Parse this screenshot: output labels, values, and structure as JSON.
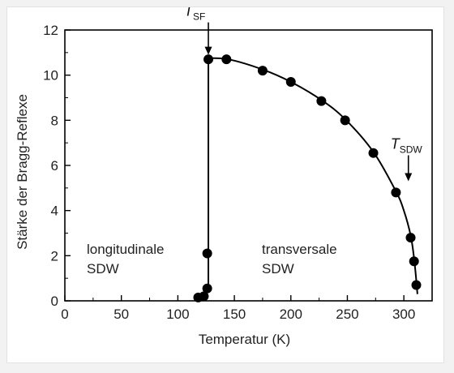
{
  "chart_data": {
    "type": "scatter",
    "xlabel": "Temperatur (K)",
    "ylabel": "Stärke der Bragg-Reflexe",
    "xlim": [
      0,
      325
    ],
    "ylim": [
      0,
      12
    ],
    "x_ticks": [
      0,
      50,
      100,
      150,
      200,
      250,
      300
    ],
    "y_ticks": [
      0,
      2,
      4,
      6,
      8,
      10,
      12
    ],
    "grid": false,
    "colors": {
      "marker": "#000000",
      "line": "#000000",
      "axis": "#000000"
    },
    "series": [
      {
        "points": [
          {
            "x": 118,
            "y": 0.15
          },
          {
            "x": 123,
            "y": 0.2
          },
          {
            "x": 126,
            "y": 0.55
          },
          {
            "x": 126,
            "y": 2.1
          },
          {
            "x": 127,
            "y": 10.7
          },
          {
            "x": 143,
            "y": 10.7
          },
          {
            "x": 175,
            "y": 10.2
          },
          {
            "x": 200,
            "y": 9.7
          },
          {
            "x": 227,
            "y": 8.85
          },
          {
            "x": 248,
            "y": 8.0
          },
          {
            "x": 273,
            "y": 6.55
          },
          {
            "x": 293,
            "y": 4.8
          },
          {
            "x": 306,
            "y": 2.8
          },
          {
            "x": 309,
            "y": 1.75
          },
          {
            "x": 311,
            "y": 0.7
          }
        ]
      }
    ],
    "curve": [
      [
        127,
        10.75
      ],
      [
        145,
        10.7
      ],
      [
        175,
        10.25
      ],
      [
        200,
        9.7
      ],
      [
        227,
        8.9
      ],
      [
        248,
        8.05
      ],
      [
        273,
        6.6
      ],
      [
        293,
        4.85
      ],
      [
        300,
        4.0
      ],
      [
        306,
        2.9
      ],
      [
        309,
        1.9
      ],
      [
        311,
        0.9
      ],
      [
        312,
        0.3
      ]
    ],
    "transition_line": {
      "x": 127,
      "y_from": 0.5,
      "y_to": 10.75
    },
    "annotations": [
      {
        "main": "T",
        "sub": "SF",
        "x": 127,
        "arrow_to_y": 10.9
      },
      {
        "main": "T",
        "sub": "SDW",
        "x": 304,
        "arrow_to_y": 5.3
      }
    ],
    "regions": [
      {
        "lines": [
          "longitudinale",
          "SDW"
        ]
      },
      {
        "lines": [
          "transversale",
          "SDW"
        ]
      }
    ]
  }
}
